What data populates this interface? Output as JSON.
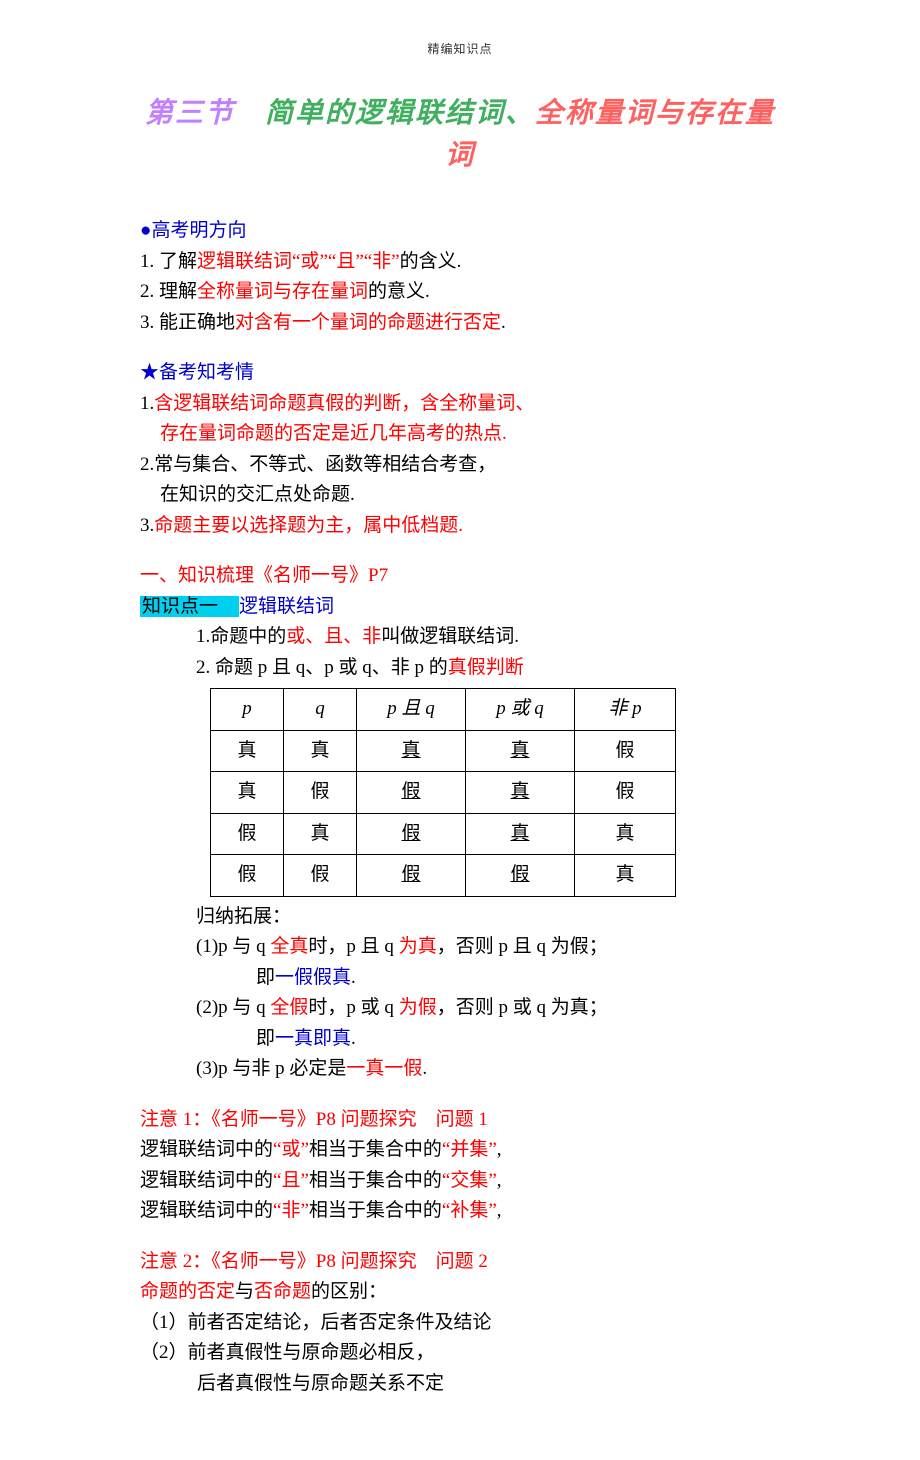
{
  "header_small": "精编知识点",
  "title": {
    "parts": [
      "第三节",
      "　简单的逻辑联结词、",
      "全称量词与存在量词"
    ],
    "colors": [
      "#c080ff",
      "#40b060",
      "#ff6060"
    ]
  },
  "gaokao": {
    "head": "●高考明方向",
    "lines": [
      {
        "pre": "1. 了解",
        "red": "逻辑联结词“或”“且”“非”",
        "post": "的含义."
      },
      {
        "pre": "2. 理解",
        "red": "全称量词与存在量词",
        "post": "的意义."
      },
      {
        "pre": "3. 能正确地",
        "red": "对含有一个量词的命题进行否定",
        "post": "."
      }
    ]
  },
  "beikao": {
    "head": "★备考知考情",
    "lines": [
      {
        "num": "1.",
        "red": "含逻辑联结词命题真假的判断，含全称量词、"
      },
      {
        "cont": true,
        "red": "存在量词命题的否定是近几年高考的热点."
      },
      {
        "num": "2.",
        "plain": "常与集合、不等式、函数等相结合考查，"
      },
      {
        "cont": true,
        "plain": "在知识的交汇点处命题."
      },
      {
        "num": "3.",
        "red": "命题主要以选择题为主，属中低档题."
      }
    ]
  },
  "shuli_head": "一、知识梳理《名师一号》P7",
  "kp1": {
    "label": "知识点一　",
    "title": "逻辑联结词",
    "l1a": "1.命题中的",
    "l1b": "或、且、非",
    "l1c": "叫做逻辑联结词.",
    "l2a": "2.  命题 p 且 q、p 或 q、非 p 的",
    "l2b": "真假判断"
  },
  "table": {
    "header": [
      "p",
      "q",
      "p 且 q",
      "p 或 q",
      "非 p"
    ],
    "rows": [
      [
        "真",
        "真",
        "真",
        "真",
        "假"
      ],
      [
        "真",
        "假",
        "假",
        "真",
        "假"
      ],
      [
        "假",
        "真",
        "假",
        "真",
        "真"
      ],
      [
        "假",
        "假",
        "假",
        "假",
        "真"
      ]
    ],
    "underline_cols": [
      2,
      3
    ],
    "col_widths": [
      "44px",
      "44px",
      "80px",
      "80px",
      "72px"
    ]
  },
  "guinatuozhan": "归纳拓展：",
  "gn_lines": [
    {
      "a": "(1)p 与 q ",
      "r1": "全真",
      "b": "时，p 且 q ",
      "r2": "为真",
      "c": "，否则 p 且 q 为假；"
    },
    {
      "indent": true,
      "a": "即",
      "b": "一假假真",
      "c": "."
    },
    {
      "a": " (2)p 与 q ",
      "r1": "全假",
      "b": "时，p 或 q ",
      "r2": "为假",
      "c": "，否则 p 或 q 为真；"
    },
    {
      "indent": true,
      "a": "即",
      "b": "一真即真",
      "c": "."
    },
    {
      "a": "(3)p 与非 p 必定是",
      "r1": "一真一假",
      "b": "."
    }
  ],
  "note1": {
    "head": "注意 1：《名师一号》P8 问题探究　问题 1",
    "l1": {
      "a": "逻辑联结词中的",
      "r1": "“或”",
      "b": "相当于集合中的",
      "r2": "“并集”",
      "c": ","
    },
    "l2": {
      "a": "逻辑联结词中的",
      "r1": "“且”",
      "b": "相当于集合中的",
      "r2": "“交集”",
      "c": ","
    },
    "l3": {
      "a": "逻辑联结词中的",
      "r1": "“非”",
      "b": "相当于集合中的",
      "r2": "“补集”",
      "c": ","
    }
  },
  "note2": {
    "head": "注意 2：《名师一号》P8 问题探究　问题 2",
    "l0a": "命题的否定",
    "l0b": "与",
    "l0c": "否命题",
    "l0d": "的区别：",
    "l1": "（1）前者否定结论，后者否定条件及结论",
    "l2": "（2）前者真假性与原命题必相反，",
    "l3": "　　　后者真假性与原命题关系不定"
  }
}
